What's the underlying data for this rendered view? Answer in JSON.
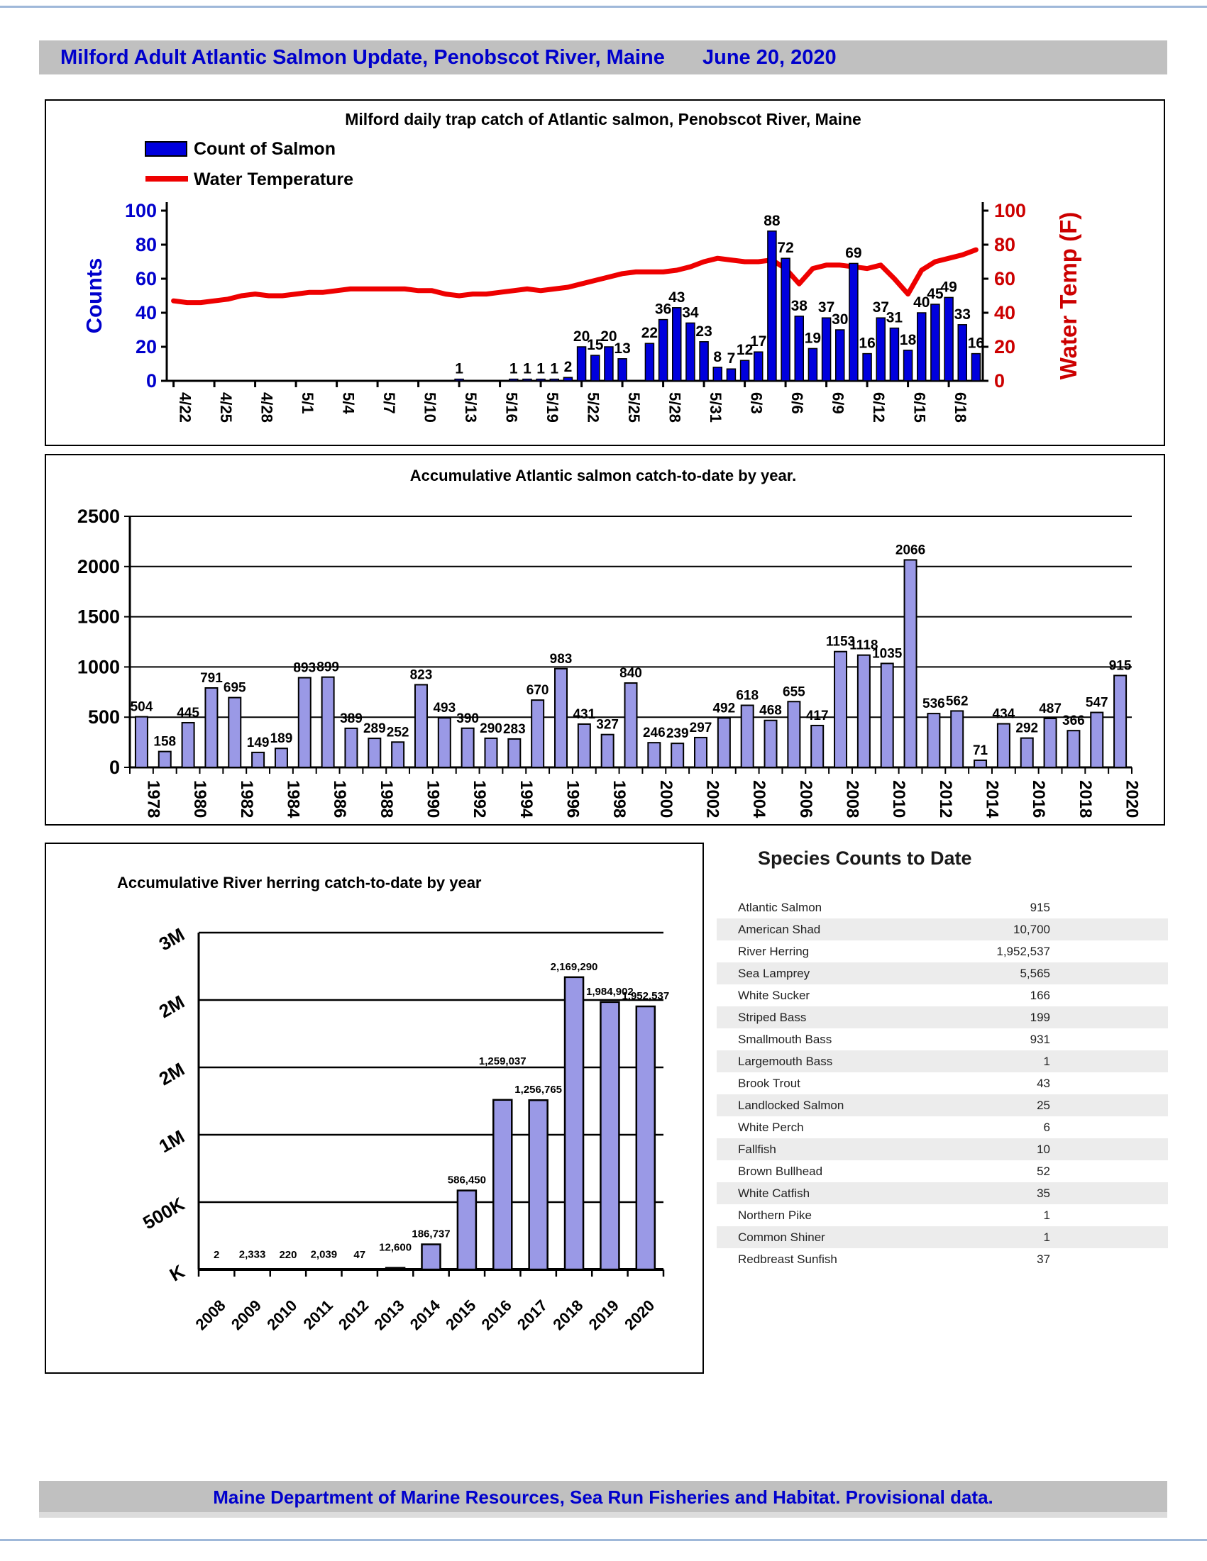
{
  "header": {
    "title": "Milford Adult Atlantic Salmon Update, Penobscot River, Maine",
    "date": "June 20, 2020"
  },
  "footer": {
    "text": "Maine Department of Marine Resources, Sea Run Fisheries and Habitat. Provisional data."
  },
  "chart_data": [
    {
      "id": "daily-trap-catch",
      "type": "bar+line",
      "title": "Milford daily trap catch of Atlantic salmon, Penobscot River, Maine",
      "legend": [
        {
          "label": "Count of Salmon",
          "type": "bar",
          "color": "#0000dd"
        },
        {
          "label": "Water Temperature",
          "type": "line",
          "color": "#ee0000"
        }
      ],
      "ylabel_left": "Counts",
      "ylabel_right": "Water Temp (F)",
      "yticks": [
        0,
        20,
        40,
        60,
        80,
        100
      ],
      "ylim": [
        0,
        100
      ],
      "xticklabels": [
        "4/22",
        "4/25",
        "4/28",
        "5/1",
        "5/4",
        "5/7",
        "5/10",
        "5/13",
        "5/16",
        "5/19",
        "5/22",
        "5/25",
        "5/28",
        "5/31",
        "6/3",
        "6/6",
        "6/9",
        "6/12",
        "6/15",
        "6/18"
      ],
      "x_range": {
        "start": "4/22",
        "end": "6/20",
        "days": 60
      },
      "bars": [
        {
          "date": "5/13",
          "count": 1
        },
        {
          "date": "5/17",
          "count": 1
        },
        {
          "date": "5/18",
          "count": 1
        },
        {
          "date": "5/19",
          "count": 1
        },
        {
          "date": "5/20",
          "count": 1
        },
        {
          "date": "5/21",
          "count": 2
        },
        {
          "date": "5/22",
          "count": 20
        },
        {
          "date": "5/23",
          "count": 15
        },
        {
          "date": "5/24",
          "count": 20
        },
        {
          "date": "5/25",
          "count": 13
        },
        {
          "date": "5/27",
          "count": 22
        },
        {
          "date": "5/28",
          "count": 36
        },
        {
          "date": "5/29",
          "count": 43
        },
        {
          "date": "5/30",
          "count": 34
        },
        {
          "date": "5/31",
          "count": 23
        },
        {
          "date": "6/1",
          "count": 8
        },
        {
          "date": "6/2",
          "count": 7
        },
        {
          "date": "6/3",
          "count": 12
        },
        {
          "date": "6/4",
          "count": 17
        },
        {
          "date": "6/5",
          "count": 88
        },
        {
          "date": "6/6",
          "count": 72
        },
        {
          "date": "6/7",
          "count": 38
        },
        {
          "date": "6/8",
          "count": 19
        },
        {
          "date": "6/9",
          "count": 37
        },
        {
          "date": "6/10",
          "count": 30
        },
        {
          "date": "6/11",
          "count": 69
        },
        {
          "date": "6/12",
          "count": 16
        },
        {
          "date": "6/13",
          "count": 37
        },
        {
          "date": "6/14",
          "count": 31
        },
        {
          "date": "6/15",
          "count": 18
        },
        {
          "date": "6/16",
          "count": 40
        },
        {
          "date": "6/17",
          "count": 45
        },
        {
          "date": "6/18",
          "count": 49
        },
        {
          "date": "6/19",
          "count": 33
        },
        {
          "date": "6/20",
          "count": 16
        }
      ],
      "water_temp_f_daily": [
        47,
        46,
        46,
        47,
        48,
        50,
        51,
        50,
        50,
        51,
        52,
        52,
        53,
        54,
        54,
        54,
        54,
        54,
        53,
        53,
        51,
        50,
        51,
        51,
        52,
        53,
        54,
        53,
        54,
        55,
        57,
        59,
        61,
        63,
        64,
        64,
        64,
        65,
        67,
        70,
        72,
        71,
        70,
        70,
        71,
        66,
        57,
        66,
        68,
        68,
        67,
        66,
        68,
        60,
        51,
        65,
        70,
        72,
        74,
        77
      ],
      "colors": {
        "bar": "#0000dd",
        "line": "#ee0000",
        "left_axis": "#0000cc",
        "right_axis": "#cc0000"
      }
    },
    {
      "id": "salmon-by-year",
      "type": "bar",
      "title": "Accumulative Atlantic salmon catch-to-date by year.",
      "years": [
        1978,
        1979,
        1980,
        1981,
        1982,
        1983,
        1984,
        1985,
        1986,
        1987,
        1988,
        1989,
        1990,
        1991,
        1992,
        1993,
        1994,
        1995,
        1996,
        1997,
        1998,
        1999,
        2000,
        2001,
        2002,
        2003,
        2004,
        2005,
        2006,
        2007,
        2008,
        2009,
        2010,
        2011,
        2012,
        2013,
        2014,
        2015,
        2016,
        2017,
        2018,
        2019,
        2020
      ],
      "values": [
        504,
        158,
        445,
        791,
        695,
        149,
        189,
        893,
        899,
        389,
        289,
        252,
        823,
        493,
        390,
        290,
        283,
        670,
        983,
        431,
        327,
        840,
        246,
        239,
        297,
        492,
        618,
        468,
        655,
        417,
        1153,
        1118,
        1035,
        2066,
        536,
        562,
        71,
        434,
        292,
        487,
        366,
        547,
        915
      ],
      "yticks": [
        0,
        500,
        1000,
        1500,
        2000,
        2500
      ],
      "ylim": [
        0,
        2500
      ],
      "xtick_label_every": 2,
      "grid": true,
      "colors": {
        "bar": "#9a99e6"
      }
    },
    {
      "id": "herring-by-year",
      "type": "bar",
      "title": "Accumulative River herring catch-to-date by year",
      "years": [
        2008,
        2009,
        2010,
        2011,
        2012,
        2013,
        2014,
        2015,
        2016,
        2017,
        2018,
        2019,
        2020
      ],
      "values": [
        2,
        2333,
        220,
        2039,
        47,
        12600,
        186737,
        586450,
        1259037,
        1256765,
        2169290,
        1984902,
        1952537
      ],
      "labels": [
        "2",
        "2,333",
        "220",
        "2,039",
        "47",
        "12,600",
        "186,737",
        "586,450",
        "1,259,037",
        "1,256,765",
        "2,169,290",
        "1,984,902",
        "1,952,537"
      ],
      "label_raise": [
        6,
        6,
        6,
        6,
        6,
        14,
        0,
        0,
        40,
        0,
        0,
        0,
        0
      ],
      "ytick_labels": [
        "K",
        "500K",
        "1M",
        "2M",
        "2M",
        "3M"
      ],
      "ytick_values": [
        0,
        500000,
        1000000,
        1500000,
        2000000,
        2500000
      ],
      "grid": true,
      "colors": {
        "bar": "#9a99e6"
      }
    }
  ],
  "species_table": {
    "title": "Species Counts to Date",
    "rows": [
      {
        "name": "Atlantic Salmon",
        "count": "915"
      },
      {
        "name": "American Shad",
        "count": "10,700"
      },
      {
        "name": "River Herring",
        "count": "1,952,537"
      },
      {
        "name": "Sea Lamprey",
        "count": "5,565"
      },
      {
        "name": "White Sucker",
        "count": "166"
      },
      {
        "name": "Striped Bass",
        "count": "199"
      },
      {
        "name": "Smallmouth Bass",
        "count": "931"
      },
      {
        "name": "Largemouth Bass",
        "count": "1"
      },
      {
        "name": "Brook Trout",
        "count": "43"
      },
      {
        "name": "Landlocked Salmon",
        "count": "25"
      },
      {
        "name": "White Perch",
        "count": "6"
      },
      {
        "name": "Fallfish",
        "count": "10"
      },
      {
        "name": "Brown Bullhead",
        "count": "52"
      },
      {
        "name": "White Catfish",
        "count": "35"
      },
      {
        "name": "Northern Pike",
        "count": "1"
      },
      {
        "name": "Common Shiner",
        "count": "1"
      },
      {
        "name": "Redbreast Sunfish",
        "count": "37"
      }
    ]
  }
}
